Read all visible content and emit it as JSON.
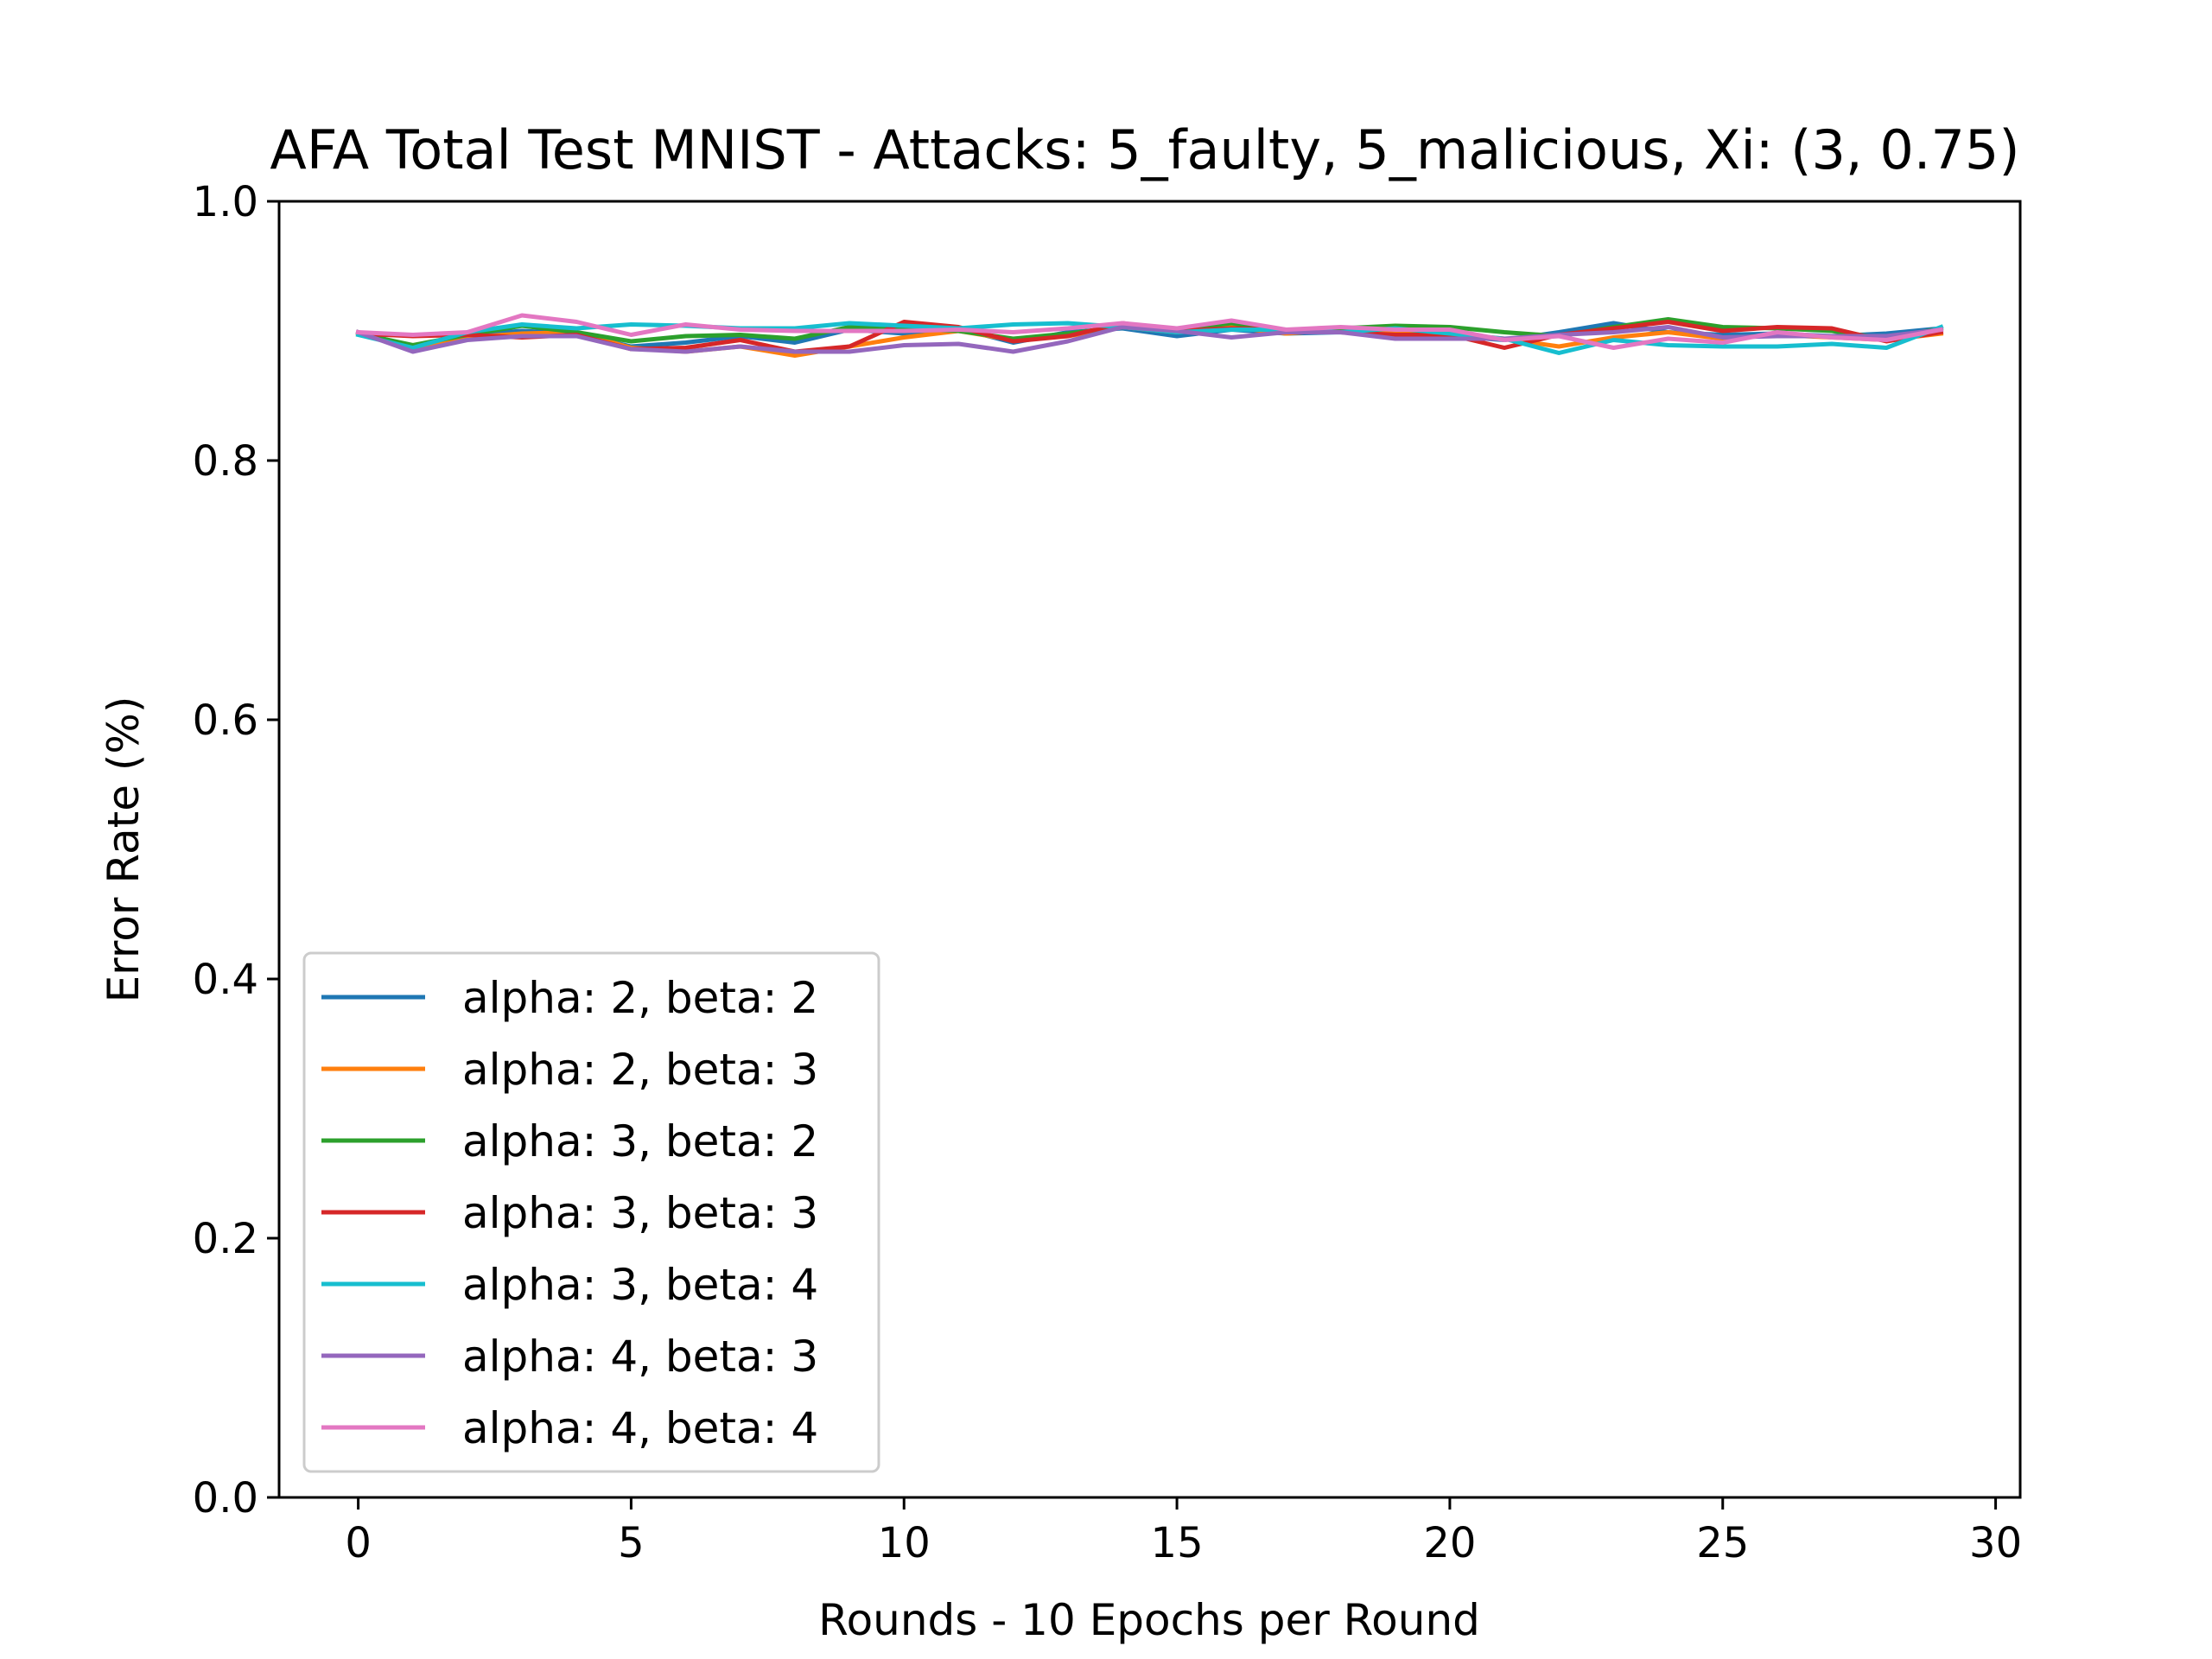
{
  "chart_data": {
    "type": "line",
    "title": "AFA Total Test MNIST - Attacks: 5_faulty, 5_malicious, Xi: (3, 0.75)",
    "xlabel": "Rounds - 10 Epochs per Round",
    "ylabel": "Error Rate (%)",
    "xlim": [
      -1.45,
      30.45
    ],
    "ylim": [
      0.0,
      1.0
    ],
    "xticks": [
      0,
      5,
      10,
      15,
      20,
      25,
      30
    ],
    "xtick_labels": [
      "0",
      "5",
      "10",
      "15",
      "20",
      "25",
      "30"
    ],
    "yticks": [
      0.0,
      0.2,
      0.4,
      0.6,
      0.8,
      1.0
    ],
    "ytick_labels": [
      "0.0",
      "0.2",
      "0.4",
      "0.6",
      "0.8",
      "1.0"
    ],
    "grid": false,
    "legend_position": "lower-left",
    "x": [
      0,
      1,
      2,
      3,
      4,
      5,
      6,
      7,
      8,
      9,
      10,
      11,
      12,
      13,
      14,
      15,
      16,
      17,
      18,
      19,
      20,
      21,
      22,
      23,
      24,
      25,
      26,
      27,
      28,
      29
    ],
    "series": [
      {
        "name": "alpha: 2, beta: 2",
        "color": "#1f77b4",
        "values": [
          0.899,
          0.888,
          0.897,
          0.9,
          0.898,
          0.888,
          0.891,
          0.896,
          0.891,
          0.901,
          0.898,
          0.902,
          0.891,
          0.899,
          0.902,
          0.896,
          0.901,
          0.898,
          0.899,
          0.897,
          0.896,
          0.893,
          0.899,
          0.906,
          0.899,
          0.897,
          0.898,
          0.896,
          0.898,
          0.902
        ]
      },
      {
        "name": "alpha: 2, beta: 3",
        "color": "#ff7f0e",
        "values": [
          0.899,
          0.886,
          0.895,
          0.898,
          0.899,
          0.887,
          0.884,
          0.888,
          0.881,
          0.888,
          0.895,
          0.9,
          0.893,
          0.896,
          0.903,
          0.899,
          0.903,
          0.898,
          0.901,
          0.899,
          0.898,
          0.894,
          0.888,
          0.895,
          0.899,
          0.894,
          0.897,
          0.895,
          0.893,
          0.898
        ]
      },
      {
        "name": "alpha: 3, beta: 2",
        "color": "#2ca02c",
        "values": [
          0.898,
          0.889,
          0.897,
          0.904,
          0.899,
          0.892,
          0.896,
          0.897,
          0.894,
          0.903,
          0.902,
          0.9,
          0.894,
          0.898,
          0.903,
          0.901,
          0.906,
          0.9,
          0.902,
          0.904,
          0.903,
          0.899,
          0.896,
          0.903,
          0.909,
          0.903,
          0.902,
          0.9,
          0.894,
          0.902
        ]
      },
      {
        "name": "alpha: 3, beta: 3",
        "color": "#d62728",
        "values": [
          0.898,
          0.896,
          0.897,
          0.895,
          0.897,
          0.886,
          0.887,
          0.893,
          0.884,
          0.888,
          0.907,
          0.903,
          0.892,
          0.896,
          0.906,
          0.9,
          0.902,
          0.901,
          0.899,
          0.897,
          0.897,
          0.887,
          0.897,
          0.902,
          0.907,
          0.9,
          0.903,
          0.902,
          0.892,
          0.899
        ]
      },
      {
        "name": "alpha: 3, beta: 4",
        "color": "#17becf",
        "values": [
          0.897,
          0.887,
          0.899,
          0.905,
          0.902,
          0.905,
          0.904,
          0.902,
          0.902,
          0.906,
          0.904,
          0.902,
          0.905,
          0.906,
          0.903,
          0.899,
          0.901,
          0.901,
          0.899,
          0.902,
          0.898,
          0.894,
          0.883,
          0.893,
          0.889,
          0.888,
          0.888,
          0.89,
          0.887,
          0.903
        ]
      },
      {
        "name": "alpha: 4, beta: 3",
        "color": "#9467bd",
        "values": [
          0.899,
          0.884,
          0.893,
          0.896,
          0.896,
          0.886,
          0.884,
          0.888,
          0.884,
          0.884,
          0.889,
          0.89,
          0.884,
          0.892,
          0.903,
          0.9,
          0.895,
          0.899,
          0.899,
          0.894,
          0.894,
          0.894,
          0.897,
          0.899,
          0.903,
          0.895,
          0.896,
          0.896,
          0.896,
          0.901
        ]
      },
      {
        "name": "alpha: 4, beta: 4",
        "color": "#e377c2",
        "values": [
          0.899,
          0.897,
          0.899,
          0.912,
          0.907,
          0.897,
          0.905,
          0.901,
          0.9,
          0.9,
          0.9,
          0.901,
          0.899,
          0.902,
          0.906,
          0.902,
          0.908,
          0.901,
          0.903,
          0.901,
          0.901,
          0.893,
          0.896,
          0.887,
          0.894,
          0.891,
          0.899,
          0.895,
          0.893,
          0.901
        ]
      }
    ]
  }
}
